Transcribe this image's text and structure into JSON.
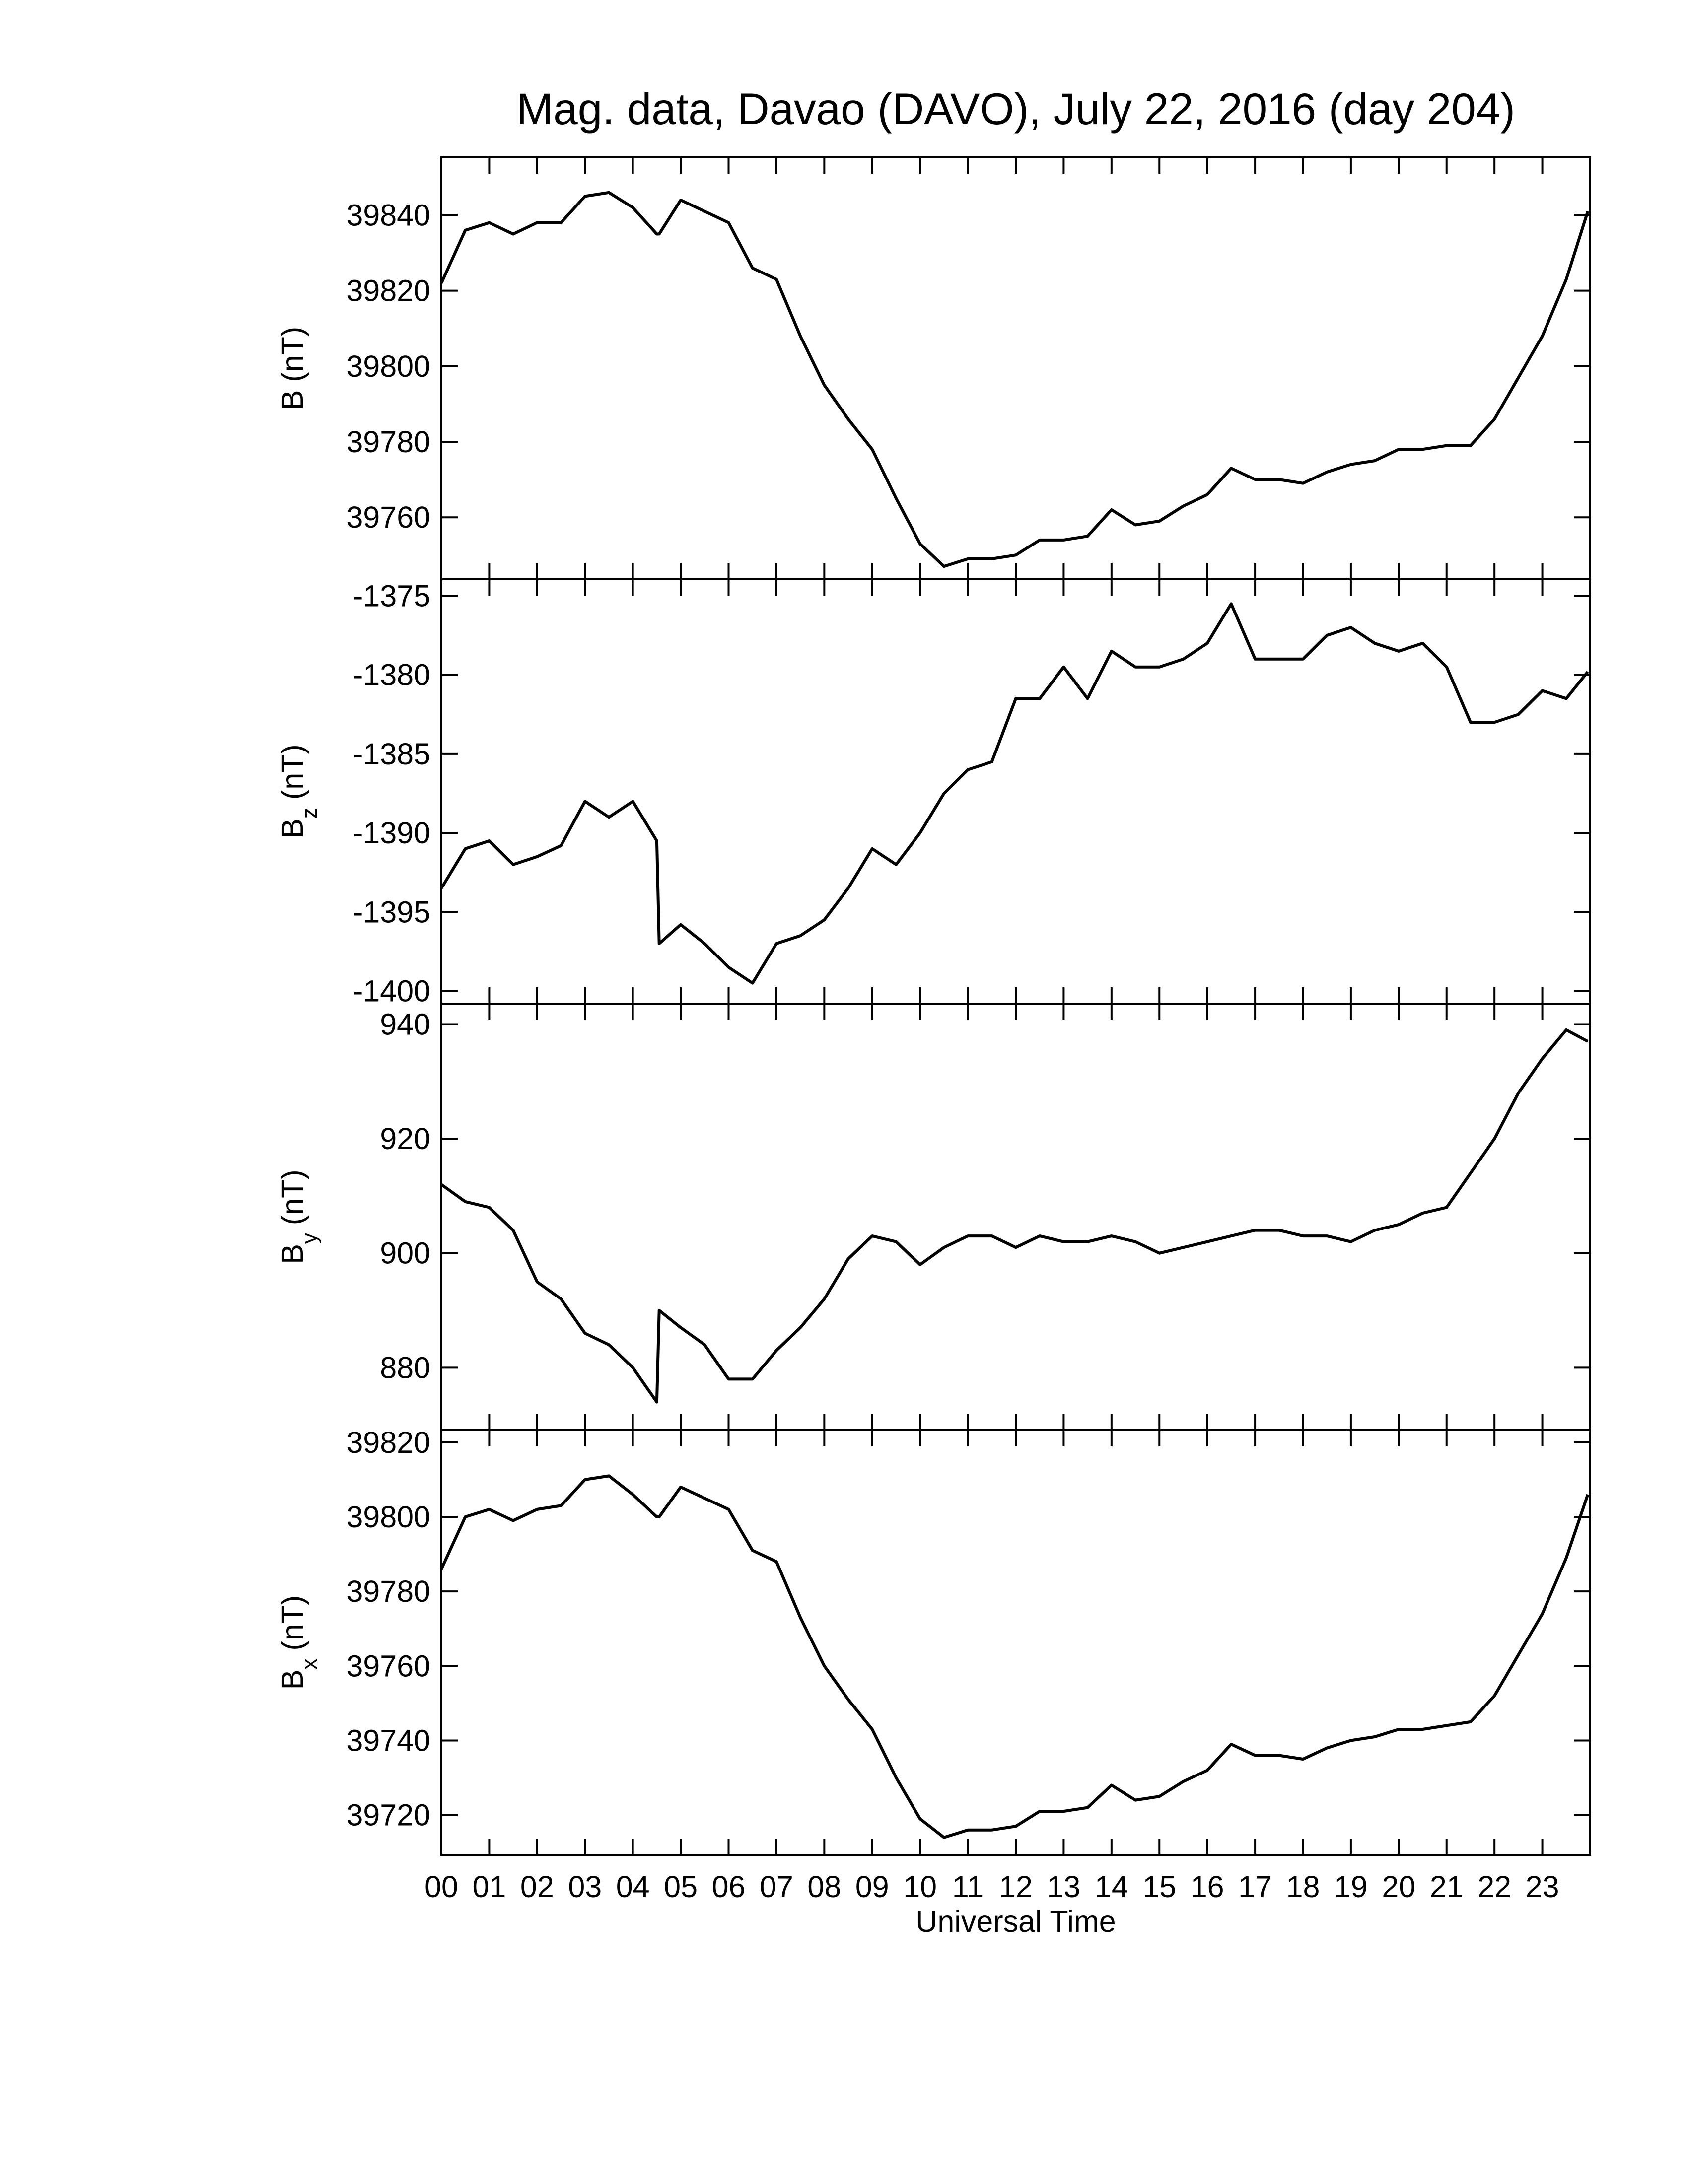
{
  "chart_data": [
    {
      "type": "line",
      "title": "Mag. data, Davao (DAVO), July 22, 2016 (day 204)",
      "ylabel": "B",
      "ylabel_unit": "(nT)",
      "x": [
        0,
        0.5,
        1,
        1.5,
        2,
        2.5,
        3,
        3.5,
        4,
        4.5,
        4.55,
        5,
        5.5,
        6,
        6.5,
        7,
        7.5,
        8,
        8.5,
        9,
        9.5,
        10,
        10.5,
        11,
        11.5,
        12,
        12.5,
        13,
        13.5,
        14,
        14.5,
        15,
        15.5,
        16,
        16.5,
        17,
        17.5,
        18,
        18.5,
        19,
        19.5,
        20,
        20.5,
        21,
        21.5,
        22,
        22.5,
        23,
        23.5,
        23.95
      ],
      "series": [
        {
          "color": "#000000",
          "values": [
            39822,
            39836,
            39838,
            39835,
            39838,
            39838,
            39845,
            39846,
            39842,
            39835,
            39835,
            39844,
            39841,
            39838,
            39826,
            39823,
            39808,
            39795,
            39786,
            39778,
            39765,
            39753,
            39747,
            39749,
            39749,
            39750,
            39754,
            39754,
            39755,
            39762,
            39758,
            39759,
            39763,
            39766,
            39773,
            39770,
            39770,
            39769,
            39772,
            39774,
            39775,
            39778,
            39778,
            39779,
            39779,
            39786,
            39797,
            39808,
            39823,
            39841
          ]
        }
      ],
      "xlim": [
        0,
        24
      ],
      "ylim": [
        39743.6,
        39855.3
      ],
      "yticks": [
        39760,
        39780,
        39800,
        39820,
        39840
      ]
    },
    {
      "type": "line",
      "ylabel": "B",
      "ylabel_sub": "z",
      "ylabel_unit": "(nT)",
      "x": [
        0,
        0.5,
        1,
        1.5,
        2,
        2.5,
        3,
        3.5,
        4,
        4.5,
        4.55,
        5,
        5.5,
        6,
        6.5,
        7,
        7.5,
        8,
        8.5,
        9,
        9.5,
        10,
        10.5,
        11,
        11.5,
        12,
        12.5,
        13,
        13.5,
        14,
        14.5,
        15,
        15.5,
        16,
        16.5,
        17,
        17.5,
        18,
        18.5,
        19,
        19.5,
        20,
        20.5,
        21,
        21.5,
        22,
        22.5,
        23,
        23.5,
        23.95
      ],
      "series": [
        {
          "color": "#000000",
          "values": [
            -1393.5,
            -1391,
            -1390.5,
            -1392,
            -1391.5,
            -1390.8,
            -1388,
            -1389,
            -1388,
            -1390.5,
            -1397,
            -1395.8,
            -1397,
            -1398.5,
            -1399.5,
            -1397,
            -1396.5,
            -1395.5,
            -1393.5,
            -1391,
            -1392,
            -1390,
            -1387.5,
            -1386,
            -1385.5,
            -1381.5,
            -1381.5,
            -1379.5,
            -1381.5,
            -1378.5,
            -1379.5,
            -1379.5,
            -1379,
            -1378,
            -1375.5,
            -1379,
            -1379,
            -1379,
            -1377.5,
            -1377,
            -1378,
            -1378.5,
            -1378,
            -1379.5,
            -1383,
            -1383,
            -1382.5,
            -1381,
            -1381.5,
            -1379.8
          ]
        }
      ],
      "xlim": [
        0,
        24
      ],
      "ylim": [
        -1400.8,
        -1373.95
      ],
      "yticks": [
        -1400,
        -1395,
        -1390,
        -1385,
        -1380,
        -1375
      ]
    },
    {
      "type": "line",
      "ylabel": "B",
      "ylabel_sub": "y",
      "ylabel_unit": "(nT)",
      "x": [
        0,
        0.5,
        1,
        1.5,
        2,
        2.5,
        3,
        3.5,
        4,
        4.5,
        4.55,
        5,
        5.5,
        6,
        6.5,
        7,
        7.5,
        8,
        8.5,
        9,
        9.5,
        10,
        10.5,
        11,
        11.5,
        12,
        12.5,
        13,
        13.5,
        14,
        14.5,
        15,
        15.5,
        16,
        16.5,
        17,
        17.5,
        18,
        18.5,
        19,
        19.5,
        20,
        20.5,
        21,
        21.5,
        22,
        22.5,
        23,
        23.5,
        23.95
      ],
      "series": [
        {
          "color": "#000000",
          "values": [
            912,
            909,
            908,
            904,
            895,
            892,
            886,
            884,
            880,
            874,
            890,
            887,
            884,
            878,
            878,
            883,
            887,
            892,
            899,
            903,
            902,
            898,
            901,
            903,
            903,
            901,
            903,
            902,
            902,
            903,
            902,
            900,
            901,
            902,
            903,
            904,
            904,
            903,
            903,
            902,
            904,
            905,
            907,
            908,
            914,
            920,
            928,
            934,
            939,
            937
          ]
        }
      ],
      "xlim": [
        0,
        24
      ],
      "ylim": [
        869.1,
        943.6
      ],
      "yticks": [
        880,
        900,
        920,
        940
      ]
    },
    {
      "type": "line",
      "ylabel": "B",
      "ylabel_sub": "x",
      "ylabel_unit": "(nT)",
      "xlabel": "Universal Time",
      "x": [
        0,
        0.5,
        1,
        1.5,
        2,
        2.5,
        3,
        3.5,
        4,
        4.5,
        4.55,
        5,
        5.5,
        6,
        6.5,
        7,
        7.5,
        8,
        8.5,
        9,
        9.5,
        10,
        10.5,
        11,
        11.5,
        12,
        12.5,
        13,
        13.5,
        14,
        14.5,
        15,
        15.5,
        16,
        16.5,
        17,
        17.5,
        18,
        18.5,
        19,
        19.5,
        20,
        20.5,
        21,
        21.5,
        22,
        22.5,
        23,
        23.5,
        23.95
      ],
      "series": [
        {
          "color": "#000000",
          "values": [
            39786,
            39800,
            39802,
            39799,
            39802,
            39803,
            39810,
            39811,
            39806,
            39800,
            39800,
            39808,
            39805,
            39802,
            39791,
            39788,
            39773,
            39760,
            39751,
            39743,
            39730,
            39719,
            39714,
            39716,
            39716,
            39717,
            39721,
            39721,
            39722,
            39728,
            39724,
            39725,
            39729,
            39732,
            39739,
            39736,
            39736,
            39735,
            39738,
            39740,
            39741,
            39743,
            39743,
            39744,
            39745,
            39752,
            39763,
            39774,
            39789,
            39806
          ]
        }
      ],
      "xlim": [
        0,
        24
      ],
      "ylim": [
        39709.3,
        39823.3
      ],
      "yticks": [
        39720,
        39740,
        39760,
        39780,
        39800,
        39820
      ],
      "xticks": [
        {
          "value": 0,
          "label": "00"
        },
        {
          "value": 1,
          "label": "01"
        },
        {
          "value": 2,
          "label": "02"
        },
        {
          "value": 3,
          "label": "03"
        },
        {
          "value": 4,
          "label": "04"
        },
        {
          "value": 5,
          "label": "05"
        },
        {
          "value": 6,
          "label": "06"
        },
        {
          "value": 7,
          "label": "07"
        },
        {
          "value": 8,
          "label": "08"
        },
        {
          "value": 9,
          "label": "09"
        },
        {
          "value": 10,
          "label": "10"
        },
        {
          "value": 11,
          "label": "11"
        },
        {
          "value": 12,
          "label": "12"
        },
        {
          "value": 13,
          "label": "13"
        },
        {
          "value": 14,
          "label": "14"
        },
        {
          "value": 15,
          "label": "15"
        },
        {
          "value": 16,
          "label": "16"
        },
        {
          "value": 17,
          "label": "17"
        },
        {
          "value": 18,
          "label": "18"
        },
        {
          "value": 19,
          "label": "19"
        },
        {
          "value": 20,
          "label": "20"
        },
        {
          "value": 21,
          "label": "21"
        },
        {
          "value": 22,
          "label": "22"
        },
        {
          "value": 23,
          "label": "23"
        }
      ]
    }
  ]
}
